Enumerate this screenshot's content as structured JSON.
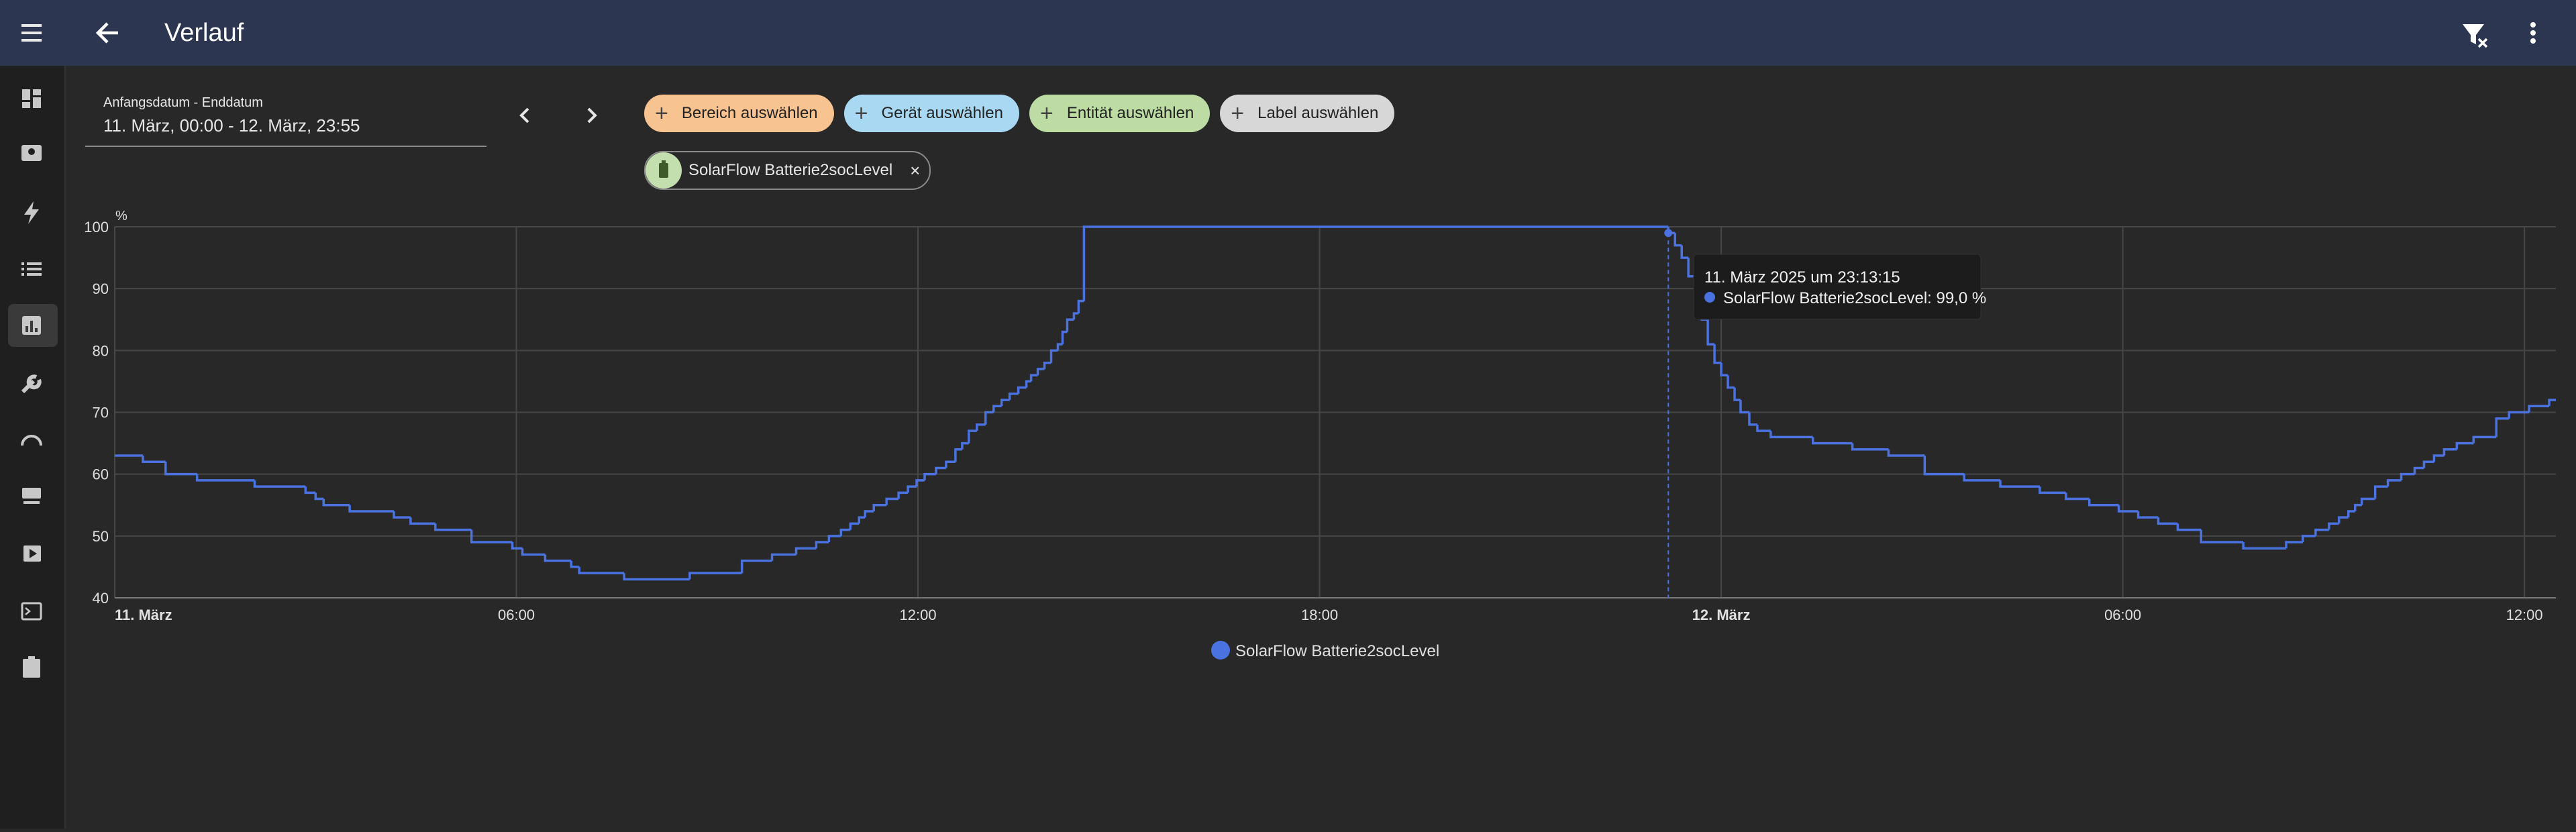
{
  "header": {
    "title": "Verlauf"
  },
  "date_range": {
    "label": "Anfangsdatum - Enddatum",
    "value": "11. März, 00:00 - 12. März, 23:55"
  },
  "filters": [
    {
      "label": "Bereich auswählen"
    },
    {
      "label": "Gerät auswählen"
    },
    {
      "label": "Entität auswählen"
    },
    {
      "label": "Label auswählen"
    }
  ],
  "selected": [
    {
      "label": "SolarFlow Batterie2socLevel"
    }
  ],
  "tooltip": {
    "title": "11. März 2025 um 23:13:15",
    "text": "SolarFlow Batterie2socLevel: 99,0 %"
  },
  "chart_data": {
    "type": "line",
    "step": true,
    "y_label": "%",
    "x": [
      0,
      0.42,
      0.76,
      1.23,
      2.09,
      2.85,
      3.0,
      3.12,
      3.51,
      4.17,
      4.42,
      4.79,
      5.33,
      5.94,
      6.09,
      6.43,
      6.82,
      6.94,
      7.61,
      8.59,
      9.37,
      9.82,
      10.18,
      10.48,
      10.67,
      10.85,
      10.99,
      11.12,
      11.21,
      11.34,
      11.53,
      11.71,
      11.85,
      11.98,
      12.1,
      12.27,
      12.42,
      12.56,
      12.66,
      12.76,
      12.88,
      13.01,
      13.13,
      13.25,
      13.37,
      13.5,
      13.62,
      13.69,
      13.79,
      13.89,
      13.99,
      14.09,
      14.16,
      14.23,
      14.33,
      14.4,
      14.48,
      23.21,
      23.31,
      23.41,
      23.51,
      23.61,
      23.71,
      23.8,
      23.9,
      24.0,
      24.1,
      24.2,
      24.29,
      24.42,
      24.54,
      24.74,
      25.37,
      25.96,
      26.5,
      27.04,
      27.63,
      28.17,
      28.76,
      29.15,
      29.5,
      29.94,
      30.23,
      30.53,
      30.82,
      31.17,
      31.8,
      32.44,
      32.69,
      32.88,
      33.08,
      33.23,
      33.37,
      33.47,
      33.57,
      33.77,
      33.96,
      34.16,
      34.36,
      34.5,
      34.65,
      34.8,
      34.99,
      35.24,
      35.58,
      35.77,
      36.07,
      36.37
    ],
    "series": [
      {
        "name": "SolarFlow Batterie2socLevel",
        "color": "#4a72e0",
        "values": [
          63,
          62,
          60,
          59,
          58,
          57,
          56,
          55,
          54,
          53,
          52,
          51,
          49,
          48,
          47,
          46,
          45,
          44,
          43,
          44,
          46,
          47,
          48,
          49,
          50,
          51,
          52,
          53,
          54,
          55,
          56,
          57,
          58,
          59,
          60,
          61,
          62,
          64,
          65,
          67,
          68,
          70,
          71,
          72,
          73,
          74,
          75,
          76,
          77,
          78,
          80,
          81,
          83,
          85,
          86,
          88,
          100,
          99,
          97,
          95,
          92,
          89,
          85,
          81,
          78,
          76,
          74,
          72,
          70,
          68,
          67,
          66,
          65,
          64,
          63,
          60,
          59,
          58,
          57,
          56,
          55,
          54,
          53,
          52,
          51,
          49,
          48,
          49,
          50,
          51,
          52,
          53,
          54,
          55,
          56,
          58,
          59,
          60,
          61,
          62,
          63,
          64,
          65,
          66,
          69,
          70,
          71,
          72
        ]
      }
    ],
    "xlim": [
      0,
      36.47
    ],
    "ylim": [
      40,
      100
    ],
    "xticks": [
      {
        "value": 0,
        "label": "11. März"
      },
      {
        "value": 6,
        "label": "06:00"
      },
      {
        "value": 12,
        "label": "12:00"
      },
      {
        "value": 18,
        "label": "18:00"
      },
      {
        "value": 24,
        "label": "12. März"
      },
      {
        "value": 30,
        "label": "06:00"
      },
      {
        "value": 36,
        "label": "12:00"
      }
    ],
    "yticks": [
      40,
      50,
      60,
      70,
      80,
      90,
      100
    ],
    "grid": true
  }
}
